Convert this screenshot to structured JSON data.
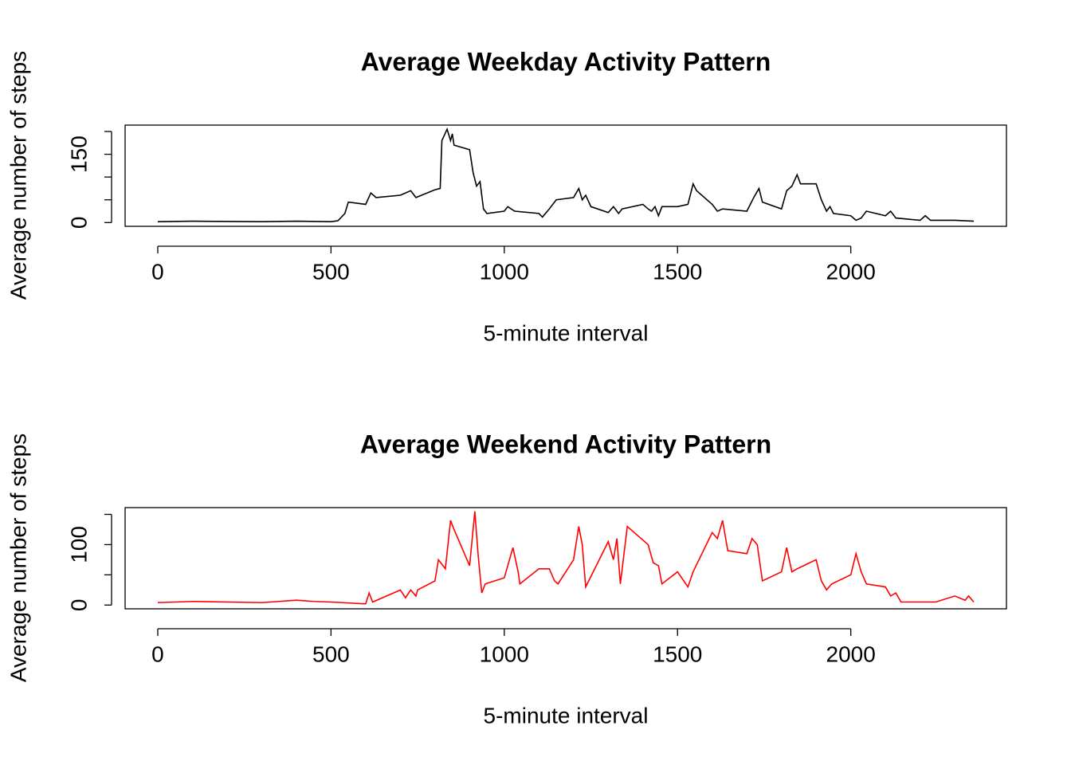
{
  "chart_data": [
    {
      "type": "line",
      "title": "Average Weekday Activity Pattern",
      "xlabel": "5-minute interval",
      "ylabel": "Average number of steps",
      "color": "#000000",
      "x": [
        0,
        100,
        300,
        400,
        500,
        520,
        540,
        550,
        600,
        615,
        630,
        700,
        730,
        745,
        800,
        815,
        820,
        835,
        845,
        850,
        855,
        900,
        910,
        920,
        930,
        940,
        950,
        1000,
        1010,
        1030,
        1100,
        1110,
        1130,
        1150,
        1200,
        1215,
        1225,
        1235,
        1250,
        1300,
        1315,
        1330,
        1340,
        1400,
        1415,
        1425,
        1435,
        1445,
        1455,
        1500,
        1530,
        1545,
        1555,
        1600,
        1615,
        1630,
        1700,
        1720,
        1735,
        1745,
        1800,
        1815,
        1830,
        1845,
        1855,
        1900,
        1915,
        1930,
        1940,
        1950,
        2000,
        2015,
        2030,
        2045,
        2100,
        2115,
        2130,
        2200,
        2215,
        2230,
        2300,
        2355
      ],
      "values": [
        2,
        3,
        2,
        3,
        2,
        4,
        20,
        45,
        40,
        65,
        55,
        60,
        70,
        55,
        72,
        75,
        180,
        205,
        180,
        195,
        170,
        160,
        110,
        80,
        90,
        30,
        20,
        25,
        35,
        25,
        20,
        12,
        30,
        50,
        55,
        75,
        50,
        60,
        35,
        22,
        35,
        20,
        30,
        40,
        30,
        25,
        35,
        15,
        35,
        35,
        40,
        85,
        70,
        40,
        25,
        30,
        25,
        55,
        75,
        45,
        30,
        70,
        80,
        105,
        85,
        85,
        50,
        25,
        35,
        20,
        15,
        5,
        10,
        25,
        15,
        25,
        10,
        5,
        15,
        5,
        5,
        3
      ],
      "xlim": [
        -94.2,
        2449.2
      ],
      "xticks": [
        0,
        500,
        1000,
        1500,
        2000
      ],
      "ylim": [
        -8.2,
        214
      ],
      "yticks": [
        0,
        {
          "value": 50,
          "label": null
        },
        {
          "value": 100,
          "label": null
        },
        150,
        {
          "value": 200,
          "label": null
        }
      ]
    },
    {
      "type": "line",
      "title": "Average Weekend Activity Pattern",
      "xlabel": "5-minute interval",
      "ylabel": "Average number of steps",
      "color": "#ff0000",
      "x": [
        0,
        100,
        300,
        400,
        450,
        500,
        600,
        610,
        620,
        700,
        715,
        730,
        745,
        750,
        800,
        810,
        830,
        845,
        855,
        900,
        915,
        925,
        935,
        945,
        1000,
        1025,
        1040,
        1045,
        1100,
        1130,
        1145,
        1155,
        1200,
        1215,
        1225,
        1235,
        1300,
        1315,
        1325,
        1335,
        1355,
        1415,
        1430,
        1445,
        1455,
        1500,
        1530,
        1545,
        1600,
        1615,
        1630,
        1645,
        1700,
        1715,
        1730,
        1745,
        1800,
        1815,
        1830,
        1845,
        1900,
        1915,
        1930,
        1945,
        2000,
        2015,
        2030,
        2045,
        2100,
        2115,
        2130,
        2145,
        2200,
        2245,
        2300,
        2330,
        2340,
        2355
      ],
      "values": [
        4,
        6,
        4,
        8,
        6,
        5,
        2,
        20,
        5,
        25,
        12,
        25,
        15,
        25,
        40,
        75,
        60,
        140,
        125,
        65,
        155,
        80,
        20,
        35,
        45,
        95,
        55,
        35,
        60,
        60,
        40,
        35,
        75,
        130,
        100,
        30,
        105,
        75,
        110,
        35,
        130,
        100,
        70,
        65,
        35,
        55,
        30,
        55,
        120,
        110,
        140,
        90,
        85,
        110,
        100,
        40,
        55,
        95,
        55,
        60,
        75,
        40,
        25,
        35,
        50,
        85,
        55,
        35,
        30,
        15,
        20,
        5,
        5,
        5,
        15,
        8,
        15,
        5
      ],
      "xlim": [
        -94.2,
        2449.2
      ],
      "xticks": [
        0,
        500,
        1000,
        1500,
        2000
      ],
      "ylim": [
        -6.2,
        161.2
      ],
      "yticks": [
        0,
        {
          "value": 50,
          "label": null
        },
        100,
        {
          "value": 150,
          "label": null
        }
      ]
    }
  ]
}
